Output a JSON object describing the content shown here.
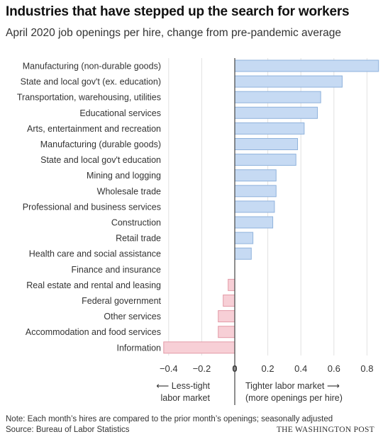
{
  "header": {
    "title": "Industries that have stepped up the search for workers",
    "subtitle": "April 2020 job openings per hire, change from pre-pandemic average"
  },
  "annotations": {
    "left_line1": "⟵ Less-tight",
    "left_line2": "labor market",
    "right_line1": "Tighter labor market ⟶",
    "right_line2": "(more openings per hire)"
  },
  "footer": {
    "note": "Note: Each month’s hires are compared to the prior month’s openings; seasonally adjusted",
    "source": "Source: Bureau of Labor Statistics",
    "brand": "THE WASHINGTON POST"
  },
  "colors": {
    "positive_fill": "#c6daf3",
    "positive_stroke": "#8fb2dc",
    "negative_fill": "#f7cfd6",
    "negative_stroke": "#e39aa7",
    "grid": "#e2e2e2",
    "zero_line": "#444444"
  },
  "chart_data": {
    "type": "bar",
    "orientation": "horizontal",
    "categories": [
      "Manufacturing (non-durable goods)",
      "State and local gov't (ex. education)",
      "Transportation, warehousing, utilities",
      "Educational services",
      "Arts, entertainment and recreation",
      "Manufacturing (durable goods)",
      "State and local gov't education",
      "Mining and logging",
      "Wholesale trade",
      "Professional and business services",
      "Construction",
      "Retail trade",
      "Health care and social assistance",
      "Finance and insurance",
      "Real estate and rental and leasing",
      "Federal government",
      "Other services",
      "Accommodation and food services",
      "Information"
    ],
    "values": [
      0.87,
      0.65,
      0.52,
      0.5,
      0.42,
      0.38,
      0.37,
      0.25,
      0.25,
      0.24,
      0.23,
      0.11,
      0.1,
      0.0,
      -0.04,
      -0.07,
      -0.1,
      -0.1,
      -0.43
    ],
    "xlim": [
      -0.43,
      0.87
    ],
    "xticks": [
      -0.4,
      -0.2,
      0,
      0.2,
      0.4,
      0.6,
      0.8
    ],
    "xtick_labels": [
      "−0.4",
      "−0.2",
      "0",
      "0.2",
      "0.4",
      "0.6",
      "0.8"
    ],
    "grid": true
  }
}
